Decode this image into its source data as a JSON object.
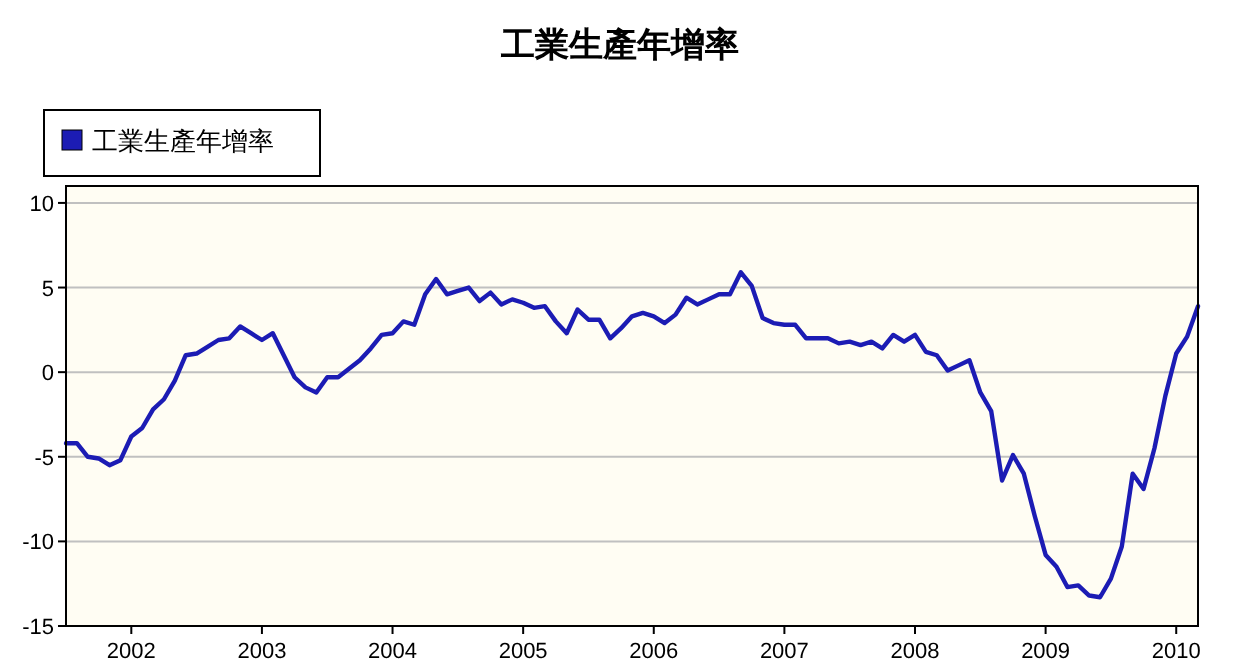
{
  "chart_data": {
    "type": "line",
    "title": "工業生產年增率",
    "x": [
      "2001-07",
      "2001-08",
      "2001-09",
      "2001-10",
      "2001-11",
      "2001-12",
      "2002-01",
      "2002-02",
      "2002-03",
      "2002-04",
      "2002-05",
      "2002-06",
      "2002-07",
      "2002-08",
      "2002-09",
      "2002-10",
      "2002-11",
      "2002-12",
      "2003-01",
      "2003-02",
      "2003-03",
      "2003-04",
      "2003-05",
      "2003-06",
      "2003-07",
      "2003-08",
      "2003-09",
      "2003-10",
      "2003-11",
      "2003-12",
      "2004-01",
      "2004-02",
      "2004-03",
      "2004-04",
      "2004-05",
      "2004-06",
      "2004-07",
      "2004-08",
      "2004-09",
      "2004-10",
      "2004-11",
      "2004-12",
      "2005-01",
      "2005-02",
      "2005-03",
      "2005-04",
      "2005-05",
      "2005-06",
      "2005-07",
      "2005-08",
      "2005-09",
      "2005-10",
      "2005-11",
      "2005-12",
      "2006-01",
      "2006-02",
      "2006-03",
      "2006-04",
      "2006-05",
      "2006-06",
      "2006-07",
      "2006-08",
      "2006-09",
      "2006-10",
      "2006-11",
      "2006-12",
      "2007-01",
      "2007-02",
      "2007-03",
      "2007-04",
      "2007-05",
      "2007-06",
      "2007-07",
      "2007-08",
      "2007-09",
      "2007-10",
      "2007-11",
      "2007-12",
      "2008-01",
      "2008-02",
      "2008-03",
      "2008-04",
      "2008-05",
      "2008-06",
      "2008-07",
      "2008-08",
      "2008-09",
      "2008-10",
      "2008-11",
      "2008-12",
      "2009-01",
      "2009-02",
      "2009-03",
      "2009-04",
      "2009-05",
      "2009-06",
      "2009-07",
      "2009-08",
      "2009-09",
      "2009-10",
      "2009-11",
      "2009-12",
      "2010-01",
      "2010-02",
      "2010-03"
    ],
    "series": [
      {
        "name": "工業生產年增率",
        "color": "#1c1cb4",
        "values": [
          -4.2,
          -4.2,
          -5.0,
          -5.1,
          -5.5,
          -5.2,
          -3.8,
          -3.3,
          -2.2,
          -1.6,
          -0.5,
          1.0,
          1.1,
          1.5,
          1.9,
          2.0,
          2.7,
          2.3,
          1.9,
          2.3,
          1.0,
          -0.3,
          -0.9,
          -1.2,
          -0.3,
          -0.3,
          0.2,
          0.7,
          1.4,
          2.2,
          2.3,
          3.0,
          2.8,
          4.6,
          5.5,
          4.6,
          4.8,
          5.0,
          4.2,
          4.7,
          4.0,
          4.3,
          4.1,
          3.8,
          3.9,
          3.0,
          2.3,
          3.7,
          3.1,
          3.1,
          2.0,
          2.6,
          3.3,
          3.5,
          3.3,
          2.9,
          3.4,
          4.4,
          4.0,
          4.3,
          4.6,
          4.6,
          5.9,
          5.1,
          3.2,
          2.9,
          2.8,
          2.8,
          2.0,
          2.0,
          2.0,
          1.7,
          1.8,
          1.6,
          1.8,
          1.4,
          2.2,
          1.8,
          2.2,
          1.2,
          1.0,
          0.1,
          0.4,
          0.7,
          -1.2,
          -2.3,
          -6.4,
          -4.9,
          -6.0,
          -8.5,
          -10.8,
          -11.5,
          -12.7,
          -12.6,
          -13.2,
          -13.3,
          -12.2,
          -10.3,
          -6.0,
          -6.9,
          -4.5,
          -1.4,
          1.1,
          2.1,
          3.9
        ]
      }
    ],
    "xlim": [
      "2001-07",
      "2010-03"
    ],
    "xticks": [
      "2002",
      "2003",
      "2004",
      "2005",
      "2006",
      "2007",
      "2008",
      "2009",
      "2010"
    ],
    "ylim": [
      -15,
      11
    ],
    "yticks": [
      -15,
      -10,
      -5,
      0,
      5,
      10
    ],
    "grid": "y",
    "legend": "top left"
  }
}
